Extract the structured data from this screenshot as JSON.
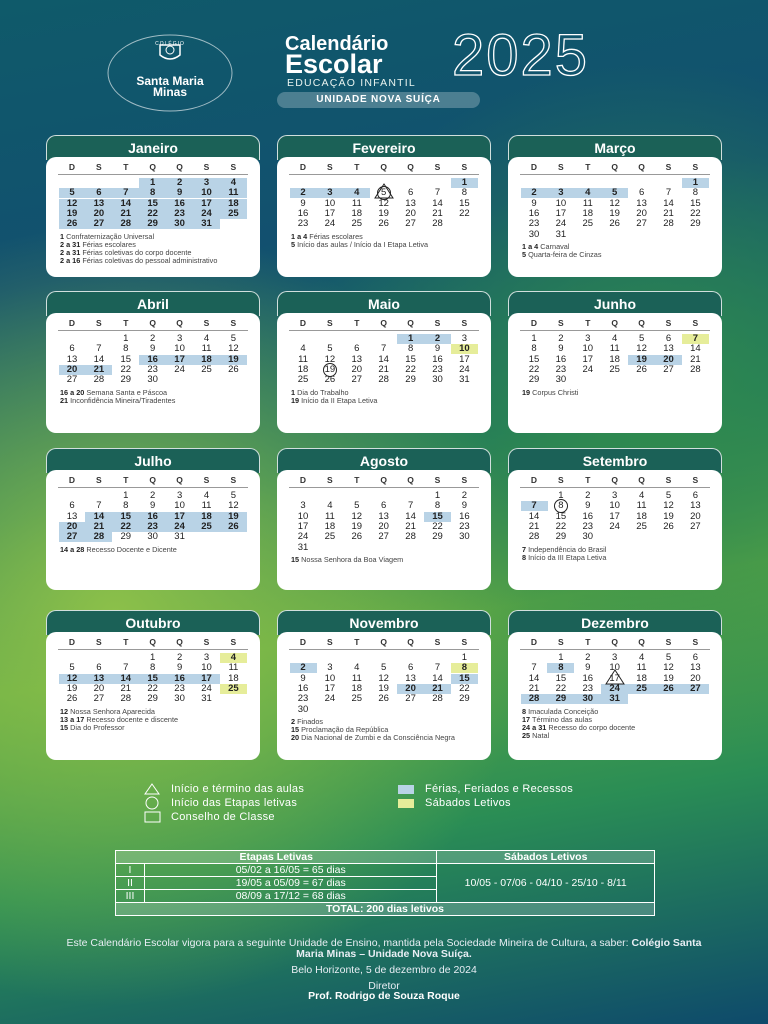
{
  "header": {
    "school_small": "COLÉGIO",
    "school_name": "Santa Maria",
    "school_city": "Minas",
    "title_line1": "Calendário",
    "title_line2": "Escolar",
    "year": "2025",
    "segment": "EDUCAÇÃO INFANTIL",
    "unit": "UNIDADE NOVA SUÍÇA"
  },
  "weekdays": [
    "D",
    "S",
    "T",
    "Q",
    "Q",
    "S",
    "S"
  ],
  "months": [
    {
      "name": "Janeiro",
      "weeks": [
        [
          null,
          null,
          null,
          1,
          2,
          3,
          4
        ],
        [
          5,
          6,
          7,
          8,
          9,
          10,
          11
        ],
        [
          12,
          13,
          14,
          15,
          16,
          17,
          18
        ],
        [
          19,
          20,
          21,
          22,
          23,
          24,
          25
        ],
        [
          26,
          27,
          28,
          29,
          30,
          31
        ]
      ],
      "marks": {
        "blue": [
          1,
          2,
          3,
          4,
          5,
          6,
          7,
          8,
          9,
          10,
          11,
          12,
          13,
          14,
          15,
          16,
          17,
          18,
          19,
          20,
          21,
          22,
          23,
          24,
          25,
          26,
          27,
          28,
          29,
          30,
          31
        ]
      },
      "notes": [
        {
          "days": "1",
          "text": "Confraternização Universal"
        },
        {
          "days": "2 a 31",
          "text": "Férias escolares"
        },
        {
          "days": "2 a 31",
          "text": "Férias coletivas do corpo docente"
        },
        {
          "days": "2 a 16",
          "text": "Férias coletivas do pessoal administrativo"
        }
      ]
    },
    {
      "name": "Fevereiro",
      "weeks": [
        [
          null,
          null,
          null,
          null,
          null,
          null,
          1
        ],
        [
          2,
          3,
          4,
          5,
          6,
          7,
          8
        ],
        [
          9,
          10,
          11,
          12,
          13,
          14,
          15
        ],
        [
          16,
          17,
          18,
          19,
          20,
          21,
          22
        ],
        [
          23,
          24,
          25,
          26,
          27,
          28
        ]
      ],
      "marks": {
        "blue": [
          1,
          2,
          3,
          4
        ],
        "triangle": [
          5
        ],
        "circle": [
          5
        ]
      },
      "notes": [
        {
          "days": "1 a 4",
          "text": "Férias escolares"
        },
        {
          "days": "5",
          "text": "Início das aulas / Início da I Etapa Letiva"
        }
      ]
    },
    {
      "name": "Março",
      "weeks": [
        [
          null,
          null,
          null,
          null,
          null,
          null,
          1
        ],
        [
          2,
          3,
          4,
          5,
          6,
          7,
          8
        ],
        [
          9,
          10,
          11,
          12,
          13,
          14,
          15
        ],
        [
          16,
          17,
          18,
          19,
          20,
          21,
          22
        ],
        [
          23,
          24,
          25,
          26,
          27,
          28,
          29
        ],
        [
          30,
          31
        ]
      ],
      "marks": {
        "blue": [
          1,
          2,
          3,
          4,
          5
        ]
      },
      "notes": [
        {
          "days": "1 a 4",
          "text": "Carnaval"
        },
        {
          "days": "5",
          "text": "Quarta-feira de Cinzas"
        }
      ]
    },
    {
      "name": "Abril",
      "weeks": [
        [
          null,
          null,
          1,
          2,
          3,
          4,
          5
        ],
        [
          6,
          7,
          8,
          9,
          10,
          11,
          12
        ],
        [
          13,
          14,
          15,
          16,
          17,
          18,
          19
        ],
        [
          20,
          21,
          22,
          23,
          24,
          25,
          26
        ],
        [
          27,
          28,
          29,
          30
        ]
      ],
      "marks": {
        "blue": [
          16,
          17,
          18,
          19,
          20,
          21
        ]
      },
      "notes": [
        {
          "days": "16 a 20",
          "text": "Semana Santa e Páscoa"
        },
        {
          "days": "21",
          "text": "Inconfidência Mineira/Tiradentes"
        }
      ]
    },
    {
      "name": "Maio",
      "weeks": [
        [
          null,
          null,
          null,
          null,
          1,
          2,
          3
        ],
        [
          4,
          5,
          6,
          7,
          8,
          9,
          10
        ],
        [
          11,
          12,
          13,
          14,
          15,
          16,
          17
        ],
        [
          18,
          19,
          20,
          21,
          22,
          23,
          24
        ],
        [
          25,
          26,
          27,
          28,
          29,
          30,
          31
        ]
      ],
      "marks": {
        "blue": [
          1,
          2
        ],
        "yellow": [
          10
        ],
        "circle": [
          19
        ]
      },
      "notes": [
        {
          "days": "1",
          "text": "Dia do Trabalho"
        },
        {
          "days": "19",
          "text": "Início da II Etapa Letiva"
        }
      ]
    },
    {
      "name": "Junho",
      "weeks": [
        [
          1,
          2,
          3,
          4,
          5,
          6,
          7
        ],
        [
          8,
          9,
          10,
          11,
          12,
          13,
          14
        ],
        [
          15,
          16,
          17,
          18,
          19,
          20,
          21
        ],
        [
          22,
          23,
          24,
          25,
          26,
          27,
          28
        ],
        [
          29,
          30
        ]
      ],
      "marks": {
        "blue": [
          19,
          20
        ],
        "yellow": [
          7
        ]
      },
      "notes": [
        {
          "days": "19",
          "text": "Corpus Christi"
        }
      ]
    },
    {
      "name": "Julho",
      "weeks": [
        [
          null,
          null,
          1,
          2,
          3,
          4,
          5
        ],
        [
          6,
          7,
          8,
          9,
          10,
          11,
          12
        ],
        [
          13,
          14,
          15,
          16,
          17,
          18,
          19
        ],
        [
          20,
          21,
          22,
          23,
          24,
          25,
          26
        ],
        [
          27,
          28,
          29,
          30,
          31
        ]
      ],
      "marks": {
        "blue": [
          14,
          15,
          16,
          17,
          18,
          19,
          20,
          21,
          22,
          23,
          24,
          25,
          26,
          27,
          28
        ]
      },
      "notes": [
        {
          "days": "14 a 28",
          "text": "Recesso Docente e Dicente"
        }
      ]
    },
    {
      "name": "Agosto",
      "weeks": [
        [
          null,
          null,
          null,
          null,
          null,
          1,
          2
        ],
        [
          3,
          4,
          5,
          6,
          7,
          8,
          9
        ],
        [
          10,
          11,
          12,
          13,
          14,
          15,
          16
        ],
        [
          17,
          18,
          19,
          20,
          21,
          22,
          23
        ],
        [
          24,
          25,
          26,
          27,
          28,
          29,
          30
        ],
        [
          31
        ]
      ],
      "marks": {
        "blue": [
          15
        ]
      },
      "notes": [
        {
          "days": "15",
          "text": "Nossa Senhora da Boa Viagem"
        }
      ]
    },
    {
      "name": "Setembro",
      "weeks": [
        [
          null,
          1,
          2,
          3,
          4,
          5,
          6
        ],
        [
          7,
          8,
          9,
          10,
          11,
          12,
          13
        ],
        [
          14,
          15,
          16,
          17,
          18,
          19,
          20
        ],
        [
          21,
          22,
          23,
          24,
          25,
          26,
          27
        ],
        [
          28,
          29,
          30
        ]
      ],
      "marks": {
        "blue": [
          7
        ],
        "circle": [
          8
        ]
      },
      "notes": [
        {
          "days": "7",
          "text": "Independência do Brasil"
        },
        {
          "days": "8",
          "text": "Início da III Etapa Letiva"
        }
      ]
    },
    {
      "name": "Outubro",
      "weeks": [
        [
          null,
          null,
          null,
          1,
          2,
          3,
          4
        ],
        [
          5,
          6,
          7,
          8,
          9,
          10,
          11
        ],
        [
          12,
          13,
          14,
          15,
          16,
          17,
          18
        ],
        [
          19,
          20,
          21,
          22,
          23,
          24,
          25
        ],
        [
          26,
          27,
          28,
          29,
          30,
          31
        ]
      ],
      "marks": {
        "blue": [
          12,
          13,
          14,
          15,
          16,
          17
        ],
        "yellow": [
          4,
          25
        ]
      },
      "notes": [
        {
          "days": "12",
          "text": "Nossa Senhora Aparecida"
        },
        {
          "days": "13 a 17",
          "text": "Recesso docente e discente"
        },
        {
          "days": "15",
          "text": "Dia do Professor"
        }
      ]
    },
    {
      "name": "Novembro",
      "weeks": [
        [
          null,
          null,
          null,
          null,
          null,
          null,
          1
        ],
        [
          2,
          3,
          4,
          5,
          6,
          7,
          8
        ],
        [
          9,
          10,
          11,
          12,
          13,
          14,
          15
        ],
        [
          16,
          17,
          18,
          19,
          20,
          21,
          22
        ],
        [
          23,
          24,
          25,
          26,
          27,
          28,
          29
        ],
        [
          30
        ]
      ],
      "marks": {
        "blue": [
          2,
          15,
          20,
          21
        ],
        "yellow": [
          8
        ]
      },
      "notes": [
        {
          "days": "2",
          "text": "Finados"
        },
        {
          "days": "15",
          "text": "Proclamação da República"
        },
        {
          "days": "20",
          "text": "Dia Nacional de Zumbi e da Consciência Negra"
        }
      ]
    },
    {
      "name": "Dezembro",
      "weeks": [
        [
          null,
          1,
          2,
          3,
          4,
          5,
          6
        ],
        [
          7,
          8,
          9,
          10,
          11,
          12,
          13
        ],
        [
          14,
          15,
          16,
          17,
          18,
          19,
          20
        ],
        [
          21,
          22,
          23,
          24,
          25,
          26,
          27
        ],
        [
          28,
          29,
          30,
          31
        ]
      ],
      "marks": {
        "blue": [
          8,
          24,
          25,
          26,
          27,
          28,
          29,
          30,
          31
        ],
        "triangle": [
          17
        ]
      },
      "notes": [
        {
          "days": "8",
          "text": "Imaculada Conceição"
        },
        {
          "days": "17",
          "text": "Término das aulas"
        },
        {
          "days": "24 a 31",
          "text": "Recesso do corpo docente"
        },
        {
          "days": "25",
          "text": "Natal"
        }
      ]
    }
  ],
  "legend": {
    "triangle": "Início e término das aulas",
    "circle": "Início das Etapas letivas",
    "square": "Conselho de Classe",
    "blue": "Férias, Feriados e Recessos",
    "yellow": "Sábados Letivos"
  },
  "table": {
    "headers": [
      "Etapas Letivas",
      "Sábados Letivos"
    ],
    "rows": [
      [
        "I",
        "05/02 a 16/05 = 65 dias"
      ],
      [
        "II",
        "19/05 a 05/09 = 67 dias"
      ],
      [
        "III",
        "08/09 a 17/12 = 68 dias"
      ]
    ],
    "saturdays": "10/05 - 07/06 - 04/10 - 25/10 - 8/11",
    "total": "TOTAL: 200 dias letivos"
  },
  "footer": {
    "text": "Este Calendário Escolar vigora para a seguinte Unidade de Ensino, mantida pela Sociedade Mineira de Cultura, a saber:",
    "school": "Colégio Santa Maria Minas – Unidade Nova Suíça.",
    "place_date": "Belo Horizonte, 5 de dezembro de 2024",
    "role": "Diretor",
    "name": "Prof. Rodrigo de Souza Roque"
  }
}
